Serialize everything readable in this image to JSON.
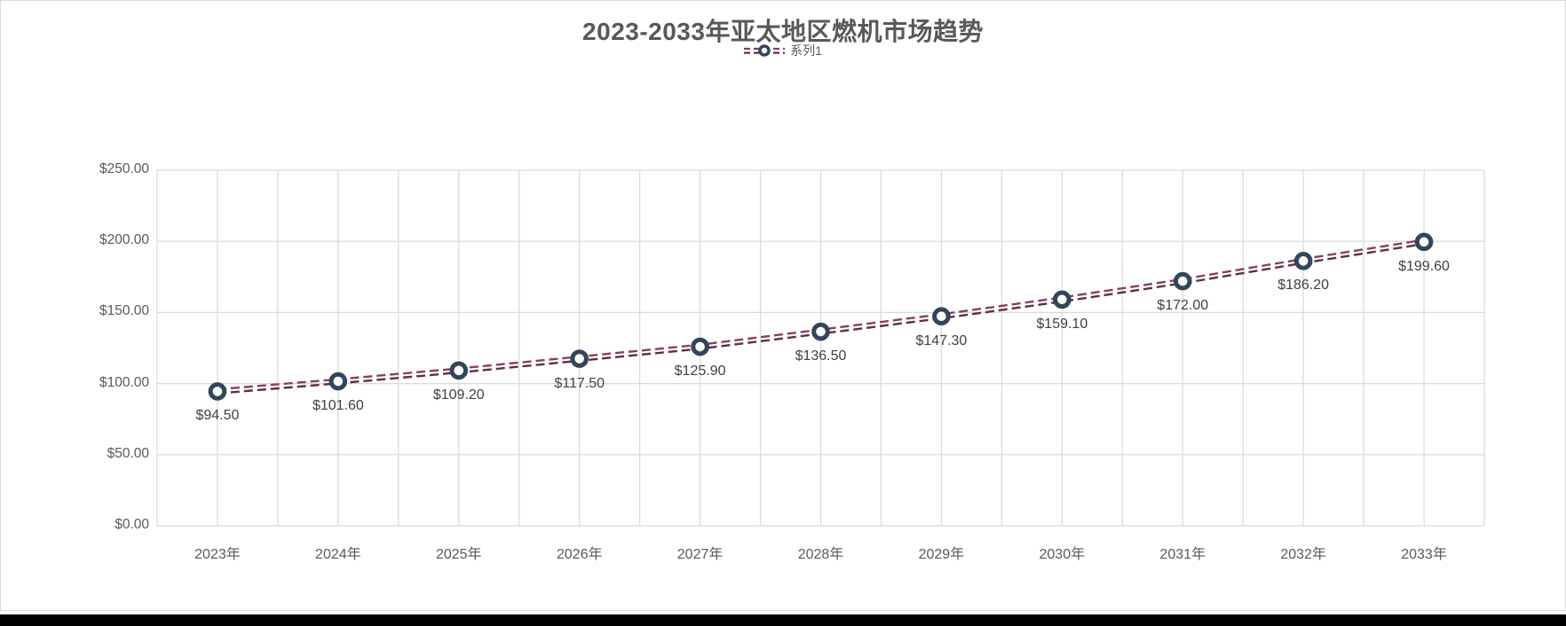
{
  "title": "2023-2033年亚太地区燃机市场趋势",
  "legend": {
    "series_label": "系列1",
    "position": "top-center"
  },
  "colors": {
    "background": "#ffffff",
    "chart_border": "#d9d9d9",
    "bottom_bar": "#000000",
    "title_text": "#595959",
    "axis_text": "#595959",
    "data_label_text": "#404040",
    "gridline": "#d9d9d9",
    "line_dash_top": "#8a3e5e",
    "line_dash_bottom": "#5a2f4a",
    "marker_ring": "#31455b",
    "marker_fill": "#ffffff"
  },
  "chart_data": {
    "type": "line",
    "title": "2023-2033年亚太地区燃机市场趋势",
    "categories": [
      "2023年",
      "2024年",
      "2025年",
      "2026年",
      "2027年",
      "2028年",
      "2029年",
      "2030年",
      "2031年",
      "2032年",
      "2033年"
    ],
    "series": [
      {
        "name": "系列1",
        "values": [
          94.5,
          101.6,
          109.2,
          117.5,
          125.9,
          136.5,
          147.3,
          159.1,
          172.0,
          186.2,
          199.6
        ],
        "point_labels": [
          "$94.50",
          "$101.60",
          "$109.20",
          "$117.50",
          "$125.90",
          "$136.50",
          "$147.30",
          "$159.10",
          "$172.00",
          "$186.20",
          "$199.60"
        ]
      }
    ],
    "y_ticks": [
      0,
      50,
      100,
      150,
      200,
      250
    ],
    "y_tick_labels": [
      "$0.00",
      "$50.00",
      "$100.00",
      "$150.00",
      "$200.00",
      "$250.00"
    ],
    "ylim": [
      0,
      250
    ],
    "grid": {
      "horizontal": true,
      "vertical": true,
      "vertical_lines_per_category": 2
    },
    "legend_position": "top-center",
    "line_style": "double-dashed",
    "marker": "open-circle",
    "data_label_position": "below"
  }
}
